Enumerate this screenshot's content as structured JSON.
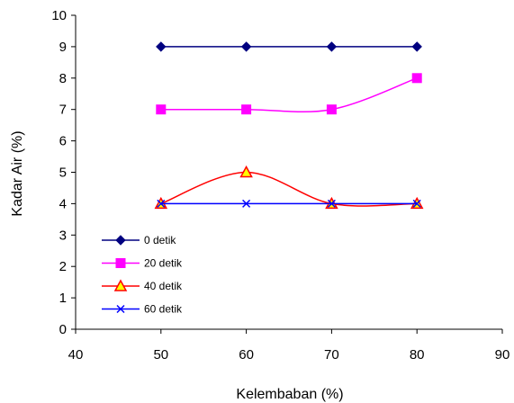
{
  "chart_data": {
    "type": "line",
    "xlabel": "Kelembaban (%)",
    "ylabel": "Kadar Air (%)",
    "xlim": [
      40,
      90
    ],
    "ylim": [
      0,
      10
    ],
    "xticks": [
      40,
      50,
      60,
      70,
      80,
      90
    ],
    "yticks": [
      0,
      1,
      2,
      3,
      4,
      5,
      6,
      7,
      8,
      9,
      10
    ],
    "grid": false,
    "legend_position": "lower-left",
    "x": [
      50,
      60,
      70,
      80
    ],
    "series": [
      {
        "name": "0 detik",
        "values": [
          9,
          9,
          9,
          9
        ],
        "color": "#000080",
        "marker": "diamond",
        "marker_fill": "#000080",
        "marker_stroke": "#000080",
        "smooth": false
      },
      {
        "name": "20 detik",
        "values": [
          7,
          7,
          7,
          8
        ],
        "color": "#FF00FF",
        "marker": "square",
        "marker_fill": "#FF00FF",
        "marker_stroke": "#FF00FF",
        "smooth": true
      },
      {
        "name": "40 detik",
        "values": [
          4,
          5,
          4,
          4
        ],
        "color": "#FF0000",
        "marker": "triangle",
        "marker_fill": "#FFFF00",
        "marker_stroke": "#FF0000",
        "smooth": true
      },
      {
        "name": "60 detik",
        "values": [
          4,
          4,
          4,
          4
        ],
        "color": "#0000FF",
        "marker": "x",
        "marker_fill": "none",
        "marker_stroke": "#0000FF",
        "smooth": false
      }
    ]
  }
}
